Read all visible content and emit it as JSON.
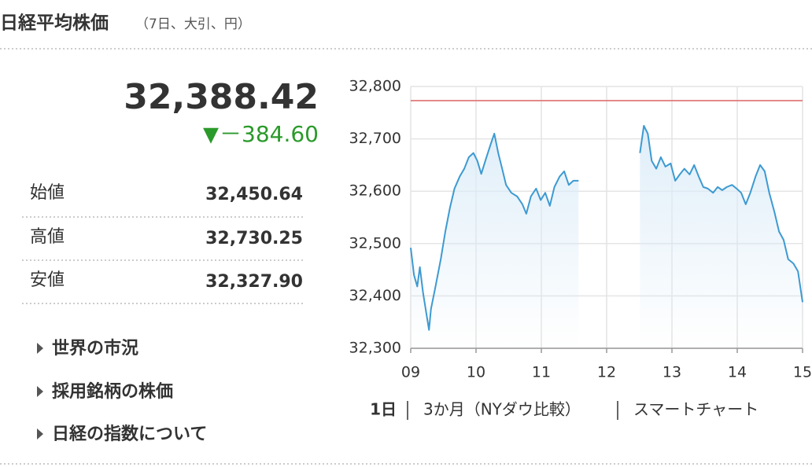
{
  "header": {
    "title": "日経平均株価",
    "subtitle": "（7日、大引、円）"
  },
  "quote": {
    "price": "32,388.42",
    "change_icon": "▼",
    "change": "－384.60"
  },
  "table": {
    "rows": [
      [
        "始値",
        "32,450.64"
      ],
      [
        "高値",
        "32,730.25"
      ],
      [
        "安値",
        "32,327.90"
      ]
    ]
  },
  "links": [
    "世界の市況",
    "採用銘柄の株価",
    "日経の指数について"
  ],
  "tabs": [
    "1日",
    "3か月（NYダウ比較）",
    "スマートチャート"
  ],
  "chart_data": {
    "type": "line",
    "color": "#3d9ad1",
    "fill_color": "#dcecf8",
    "x": [
      9.0,
      9.05,
      9.1,
      9.14,
      9.19,
      9.28,
      9.31,
      9.37,
      9.46,
      9.53,
      9.6,
      9.67,
      9.75,
      9.82,
      9.89,
      9.96,
      10.02,
      10.08,
      10.16,
      10.22,
      10.28,
      10.34,
      10.4,
      10.46,
      10.54,
      10.63,
      10.71,
      10.77,
      10.84,
      10.92,
      10.99,
      11.06,
      11.13,
      11.2,
      11.28,
      11.35,
      11.42,
      11.49,
      11.57,
      12.0,
      12.51,
      12.57,
      12.63,
      12.69,
      12.76,
      12.83,
      12.9,
      12.98,
      13.05,
      13.12,
      13.19,
      13.27,
      13.34,
      13.41,
      13.48,
      13.55,
      13.63,
      13.7,
      13.77,
      13.84,
      13.92,
      13.99,
      14.06,
      14.13,
      14.2,
      14.28,
      14.35,
      14.42,
      14.49,
      14.57,
      14.64,
      14.71,
      14.78,
      14.86,
      14.93,
      15.0
    ],
    "values": [
      32492,
      32440,
      32418,
      32455,
      32405,
      32335,
      32375,
      32412,
      32470,
      32523,
      32568,
      32605,
      32628,
      32643,
      32665,
      32673,
      32658,
      32633,
      32665,
      32688,
      32710,
      32673,
      32643,
      32612,
      32597,
      32590,
      32575,
      32557,
      32590,
      32605,
      32583,
      32597,
      32572,
      32608,
      32628,
      32638,
      32612,
      32620,
      32620,
      null,
      32673,
      32725,
      32710,
      32658,
      32643,
      32665,
      32647,
      32653,
      32620,
      32632,
      32643,
      32632,
      32650,
      32628,
      32608,
      32605,
      32597,
      32608,
      32602,
      32608,
      32612,
      32605,
      32597,
      32575,
      32597,
      32628,
      32650,
      32638,
      32597,
      32560,
      32523,
      32507,
      32470,
      32462,
      32447,
      32388
    ],
    "xlim": [
      9,
      15
    ],
    "ylim": [
      32300,
      32800
    ],
    "xticks": [
      {
        "value": 9,
        "label": "09"
      },
      10,
      11,
      12,
      13,
      14,
      15
    ],
    "yticks": [
      {
        "value": 32300,
        "label": "32,300"
      },
      {
        "value": 32400,
        "label": "32,400"
      },
      {
        "value": 32500,
        "label": "32,500"
      },
      {
        "value": 32600,
        "label": "32,600"
      },
      {
        "value": 32700,
        "label": "32,700"
      },
      {
        "value": 32800,
        "label": "32,800"
      }
    ],
    "grid": true,
    "reference_line": 32773.02,
    "reference_color": "#e07a7a"
  }
}
